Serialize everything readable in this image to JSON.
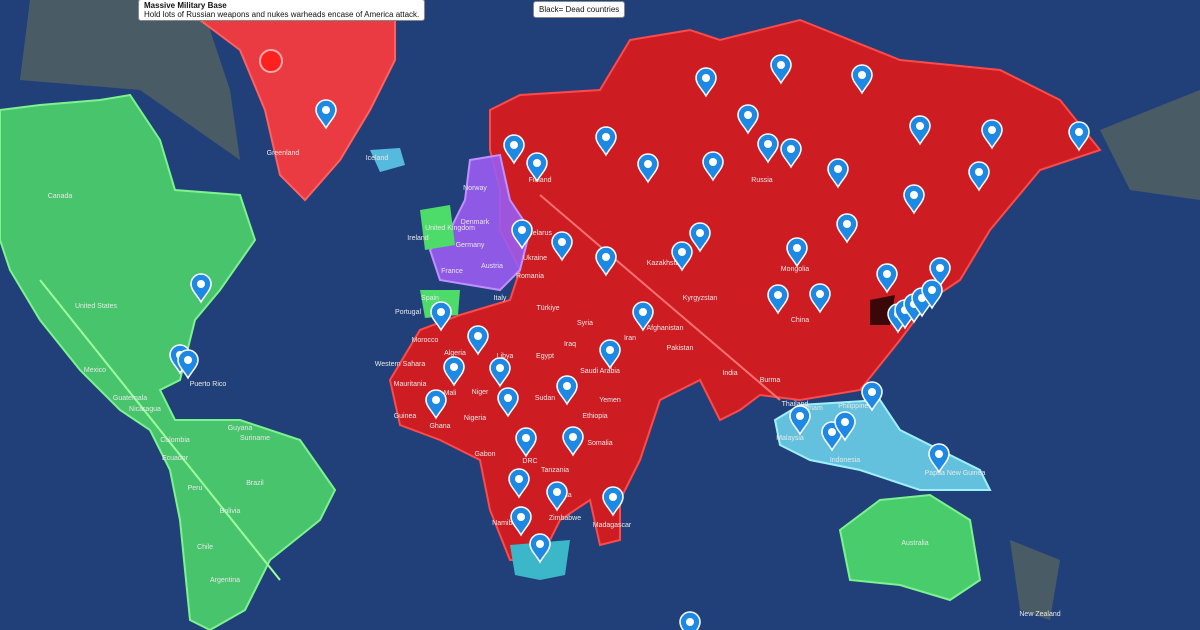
{
  "callouts": [
    {
      "title": "Massive Military Base",
      "text": "Hold lots of Russian weapons and nukes warheads encase of America attack."
    },
    {
      "text": "Black= Dead countries"
    }
  ],
  "labels": [
    "Greenland",
    "Iceland",
    "Canada",
    "United States",
    "Mexico",
    "Puerto Rico",
    "Guatemala",
    "Nicaragua",
    "Colombia",
    "Ecuador",
    "Peru",
    "Brazil",
    "Bolivia",
    "Chile",
    "Argentina",
    "Guyana",
    "Suriname",
    "Norway",
    "Denmark",
    "United Kingdom",
    "Ireland",
    "Germany",
    "France",
    "Austria",
    "Spain",
    "Portugal",
    "Belarus",
    "Ukraine",
    "Romania",
    "Italy",
    "Türkiye",
    "Syria",
    "Iraq",
    "Iran",
    "Afghanistan",
    "Pakistan",
    "India",
    "Kazakhstan",
    "Kyrgyzstan",
    "Mongolia",
    "China",
    "Russia",
    "Finland",
    "Morocco",
    "Algeria",
    "Libya",
    "Egypt",
    "Saudi Arabia",
    "Yemen",
    "Mali",
    "Niger",
    "Mauritania",
    "Western Sahara",
    "Guinea",
    "Ghana",
    "Nigeria",
    "Sudan",
    "Ethiopia",
    "Somalia",
    "Gabon",
    "DRC",
    "Tanzania",
    "Zambia",
    "Zimbabwe",
    "Namibia",
    "Madagascar",
    "Burma",
    "Thailand",
    "Vietnam",
    "Philippines",
    "Malaysia",
    "Indonesia",
    "Papua New Guinea",
    "Australia",
    "New Zealand"
  ]
}
